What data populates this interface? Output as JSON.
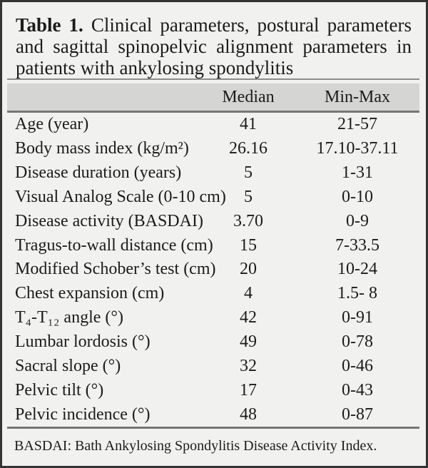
{
  "title": {
    "label": "Table 1.",
    "line1_rest": "Clinical parameters, postural parameters",
    "line2": "and sagittal spinopelvic alignment parameters in",
    "line3": "patients with ankylosing spondylitis"
  },
  "table": {
    "columns": [
      "Median",
      "Min-Max"
    ],
    "rows": [
      {
        "label": "Age (year)",
        "median": "41",
        "minmax": "21-57"
      },
      {
        "label": "Body mass index (kg/m²)",
        "median": "26.16",
        "minmax": "17.10-37.11"
      },
      {
        "label": "Disease duration (years)",
        "median": "5",
        "minmax": "1-31"
      },
      {
        "label": "Visual Analog Scale (0-10 cm)",
        "median": "5",
        "minmax": "0-10"
      },
      {
        "label": "Disease activity (BASDAI)",
        "median": "3.70",
        "minmax": "0-9"
      },
      {
        "label": "Tragus-to-wall distance (cm)",
        "median": "15",
        "minmax": "7-33.5"
      },
      {
        "label": "Modified Schober’s test (cm)",
        "median": "20",
        "minmax": "10-24"
      },
      {
        "label": "Chest expansion (cm)",
        "median": "4",
        "minmax": "1.5- 8"
      },
      {
        "label": "T₄-T₁₂ angle (°)",
        "median": "42",
        "minmax": "0-91"
      },
      {
        "label": "Lumbar lordosis (°)",
        "median": "49",
        "minmax": "0-78"
      },
      {
        "label": "Sacral slope (°)",
        "median": "32",
        "minmax": "0-46"
      },
      {
        "label": "Pelvic tilt (°)",
        "median": "17",
        "minmax": "0-43"
      },
      {
        "label": "Pelvic incidence (°)",
        "median": "48",
        "minmax": "0-87"
      }
    ]
  },
  "footnote": "BASDAI: Bath Ankylosing Spondylitis Disease Activity Index.",
  "colors": {
    "background": "#f1f1ef",
    "header_band": "#d5d5d3",
    "rule": "#767676",
    "border": "#343434",
    "text": "#1b1b1b"
  }
}
